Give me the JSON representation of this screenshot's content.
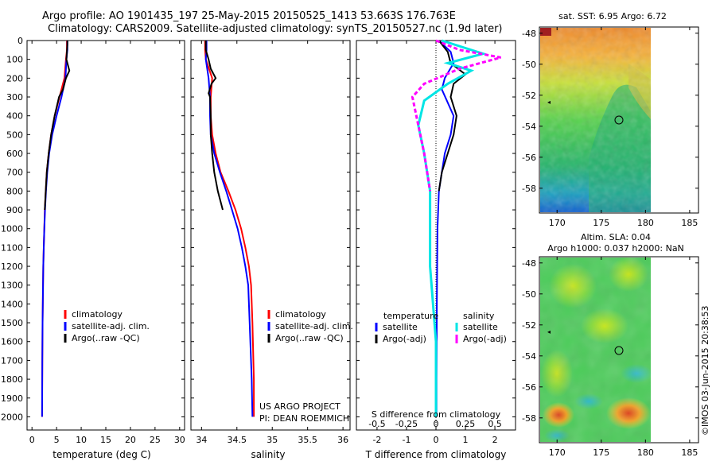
{
  "title": {
    "line1": "Argo profile: AO 1901435_197 25-May-2015 20150525_1413 53.663S 176.763E",
    "line2": "Climatology: CARS2009. Satellite-adjusted climatology: synTS_20150527.nc (1.9d later)"
  },
  "depth_ticks": [
    "0",
    "100",
    "200",
    "300",
    "400",
    "500",
    "600",
    "700",
    "800",
    "900",
    "1000",
    "1100",
    "1200",
    "1300",
    "1400",
    "1500",
    "1600",
    "1700",
    "1800",
    "1900",
    "2000"
  ],
  "colors": {
    "climatology": "#ff0000",
    "satellite": "#0000ff",
    "argo": "#000000",
    "sal_sat": "#00e5e5",
    "sal_argo": "#ff00ff"
  },
  "chart_data": [
    {
      "type": "line",
      "name": "temperature",
      "xlabel": "temperature (deg C)",
      "ylabel": "depth",
      "xlim": [
        -1,
        31
      ],
      "ylim": [
        2070,
        0
      ],
      "x_ticks": [
        0,
        5,
        10,
        15,
        20,
        25,
        30
      ],
      "legend": [
        "climatology",
        "satellite-adj. clim.",
        "Argo(..raw -QC)"
      ],
      "series": [
        {
          "name": "climatology",
          "color": "#ff0000",
          "x": [
            7.1,
            7.1,
            6.9,
            6.6,
            5.6,
            4.6,
            3.9,
            3.4,
            3.0,
            2.8,
            2.6,
            2.5,
            2.4,
            2.3,
            2.25,
            2.2,
            2.15,
            2.1,
            2.05
          ],
          "depth": [
            0,
            50,
            100,
            200,
            300,
            400,
            500,
            600,
            700,
            800,
            900,
            1000,
            1100,
            1200,
            1300,
            1400,
            1500,
            1700,
            2000
          ]
        },
        {
          "name": "satellite-adj. clim.",
          "color": "#0000ff",
          "x": [
            7.2,
            7.2,
            7.0,
            6.8,
            6.0,
            5.0,
            4.1,
            3.5,
            3.1,
            2.85,
            2.65,
            2.5,
            2.4,
            2.3,
            2.25,
            2.2,
            2.15,
            2.1,
            2.05
          ],
          "depth": [
            0,
            50,
            100,
            200,
            300,
            400,
            500,
            600,
            700,
            800,
            900,
            1000,
            1100,
            1200,
            1300,
            1400,
            1500,
            1700,
            2000
          ]
        },
        {
          "name": "Argo(..raw -QC)",
          "color": "#000000",
          "x": [
            7.2,
            7.2,
            7.0,
            7.6,
            6.9,
            6.3,
            5.5,
            4.6,
            3.9,
            3.4,
            3.0,
            2.8,
            2.6
          ],
          "depth": [
            0,
            20,
            100,
            160,
            200,
            260,
            300,
            400,
            500,
            600,
            700,
            800,
            900
          ]
        }
      ]
    },
    {
      "type": "line",
      "name": "salinity",
      "xlabel": "salinity",
      "xlim": [
        33.85,
        36.1
      ],
      "ylim": [
        2070,
        0
      ],
      "x_ticks": [
        34,
        34.5,
        35,
        35.5,
        36
      ],
      "legend": [
        "climatology",
        "satellite-adj. clim.",
        "Argo(..raw -QC)"
      ],
      "annotation": [
        "US ARGO PROJECT",
        "PI: DEAN ROEMMICH"
      ],
      "series": [
        {
          "name": "climatology",
          "color": "#ff0000",
          "x": [
            34.05,
            34.05,
            34.06,
            34.15,
            34.13,
            34.13,
            34.15,
            34.2,
            34.27,
            34.38,
            34.48,
            34.56,
            34.62,
            34.67,
            34.7,
            34.72,
            34.74,
            34.74
          ],
          "depth": [
            0,
            50,
            100,
            200,
            300,
            400,
            500,
            600,
            700,
            800,
            900,
            1000,
            1100,
            1200,
            1300,
            1500,
            1800,
            2000
          ]
        },
        {
          "name": "satellite-adj. clim.",
          "color": "#0000ff",
          "x": [
            34.07,
            34.07,
            34.06,
            34.1,
            34.12,
            34.12,
            34.13,
            34.18,
            34.26,
            34.35,
            34.43,
            34.51,
            34.57,
            34.62,
            34.66,
            34.68,
            34.71,
            34.72
          ],
          "depth": [
            0,
            50,
            100,
            200,
            300,
            400,
            500,
            600,
            700,
            800,
            900,
            1000,
            1100,
            1200,
            1300,
            1500,
            1800,
            2000
          ]
        },
        {
          "name": "Argo(..raw -QC)",
          "color": "#000000",
          "x": [
            34.06,
            34.06,
            34.1,
            34.13,
            34.2,
            34.14,
            34.1,
            34.12,
            34.13,
            34.13,
            34.15,
            34.18,
            34.23,
            34.3
          ],
          "depth": [
            0,
            50,
            100,
            150,
            200,
            230,
            280,
            300,
            400,
            500,
            600,
            700,
            800,
            900
          ]
        }
      ]
    },
    {
      "type": "line",
      "name": "difference",
      "xlabel": "T difference from climatology",
      "xlabel2": "S difference from climatology",
      "xlim": [
        -2.7,
        2.7
      ],
      "ylim": [
        2070,
        0
      ],
      "x_ticks_T": [
        "-2",
        "-1",
        "0",
        "1",
        "2"
      ],
      "x_ticks_S": [
        "-0.5",
        "-0.25",
        "0",
        "0.25",
        "0.5"
      ],
      "legend": {
        "col1_title": "temperature",
        "col2_title": "salinity",
        "col1": [
          "satellite",
          "Argo(-adj)"
        ],
        "col2": [
          "satellite",
          "Argo(-adj)"
        ]
      },
      "series": [
        {
          "name": "temperature satellite",
          "color": "#0000ff",
          "x": [
            0.1,
            0.5,
            0.6,
            0.3,
            0.2,
            0.4,
            0.6,
            0.5,
            0.3,
            0.2,
            0.1,
            0.05,
            0.03,
            0.02,
            0.02
          ],
          "depth": [
            0,
            60,
            120,
            200,
            260,
            330,
            400,
            500,
            600,
            700,
            800,
            1000,
            1400,
            1800,
            2000
          ]
        },
        {
          "name": "temperature Argo(-adj)",
          "color": "#000000",
          "x": [
            0.1,
            0.4,
            0.5,
            1.0,
            0.6,
            0.5,
            0.7,
            0.6,
            0.4,
            0.2,
            0.1
          ],
          "depth": [
            0,
            60,
            120,
            180,
            230,
            300,
            400,
            500,
            600,
            700,
            800
          ]
        },
        {
          "name": "salinity satellite",
          "color": "#00e5e5",
          "x": [
            0.05,
            0.4,
            0.1,
            0.3,
            0.1,
            -0.1,
            -0.15,
            -0.1,
            -0.05,
            -0.05,
            0.0,
            0.0
          ],
          "depth": [
            0,
            70,
            120,
            160,
            230,
            320,
            450,
            600,
            800,
            1200,
            1600,
            2000
          ]
        },
        {
          "name": "salinity Argo(-adj)",
          "color": "#ff00ff",
          "x": [
            0.0,
            0.2,
            0.55,
            0.2,
            -0.1,
            -0.2,
            -0.15,
            -0.1,
            -0.05
          ],
          "depth": [
            0,
            50,
            90,
            150,
            230,
            300,
            450,
            600,
            800
          ]
        }
      ]
    },
    {
      "type": "heatmap",
      "name": "sst-map",
      "title": "sat. SST: 6.95 Argo: 6.72",
      "x_ticks": [
        "170",
        "175",
        "180",
        "185"
      ],
      "y_ticks": [
        "-48",
        "-50",
        "-52",
        "-54",
        "-56",
        "-58"
      ],
      "xlim": [
        168,
        186
      ],
      "ylim": [
        -59.6,
        -47.6
      ],
      "marker": {
        "lon": 176.763,
        "lat": -53.663
      }
    },
    {
      "type": "heatmap",
      "name": "sla-map",
      "title": [
        "Altim. SLA: 0.04",
        "Argo h1000: 0.037 h2000: NaN"
      ],
      "x_ticks": [
        "170",
        "175",
        "180",
        "185"
      ],
      "y_ticks": [
        "-48",
        "-50",
        "-52",
        "-54",
        "-56",
        "-58"
      ],
      "xlim": [
        168,
        186
      ],
      "ylim": [
        -59.6,
        -47.6
      ],
      "marker": {
        "lon": 176.763,
        "lat": -53.663
      }
    }
  ],
  "watermark": "©IMOS 03-Jun-2015 20:38:53"
}
